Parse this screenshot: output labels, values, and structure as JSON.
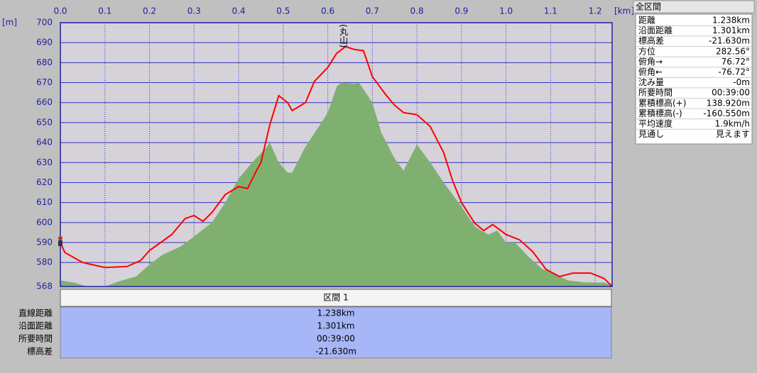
{
  "chart_data": {
    "type": "line",
    "xlabel": "[km]",
    "ylabel": "[m]",
    "xlim": [
      0,
      1.238
    ],
    "ylim": [
      568,
      700
    ],
    "xticks": [
      {
        "value": 0,
        "label": "0.0"
      },
      {
        "value": 0.1,
        "label": "0.1"
      },
      {
        "value": 0.2,
        "label": "0.2"
      },
      {
        "value": 0.3,
        "label": "0.3"
      },
      {
        "value": 0.4,
        "label": "0.4"
      },
      {
        "value": 0.5,
        "label": "0.5"
      },
      {
        "value": 0.6,
        "label": "0.6"
      },
      {
        "value": 0.7,
        "label": "0.7"
      },
      {
        "value": 0.8,
        "label": "0.8"
      },
      {
        "value": 0.9,
        "label": "0.9"
      },
      {
        "value": 1.0,
        "label": "1.0"
      },
      {
        "value": 1.1,
        "label": "1.1"
      },
      {
        "value": 1.2,
        "label": "1.2"
      }
    ],
    "yticks": [
      568,
      580,
      590,
      600,
      610,
      620,
      630,
      640,
      650,
      660,
      670,
      680,
      690,
      700
    ],
    "grid": true,
    "annotation": {
      "text": "(丸山)",
      "x": 0.64
    },
    "series": [
      {
        "color": "#80b070",
        "fill": true,
        "x": [
          0,
          0.03,
          0.06,
          0.1,
          0.13,
          0.17,
          0.2,
          0.23,
          0.27,
          0.3,
          0.34,
          0.37,
          0.4,
          0.43,
          0.46,
          0.47,
          0.49,
          0.51,
          0.52,
          0.55,
          0.58,
          0.6,
          0.62,
          0.63,
          0.66,
          0.67,
          0.7,
          0.72,
          0.75,
          0.77,
          0.8,
          0.83,
          0.86,
          0.9,
          0.93,
          0.96,
          0.98,
          1.0,
          1.02,
          1.05,
          1.08,
          1.11,
          1.14,
          1.18,
          1.22,
          1.238
        ],
        "values": [
          571,
          570,
          568,
          568,
          570.5,
          573,
          579,
          584,
          588,
          593,
          600,
          610,
          622,
          630,
          637,
          640,
          630,
          625,
          625,
          638,
          648,
          655,
          668,
          670,
          669.5,
          670,
          660,
          645,
          632,
          626,
          639,
          630,
          620,
          608,
          598,
          594,
          596,
          590,
          590,
          583,
          577,
          574,
          571,
          570,
          570,
          568.5
        ]
      },
      {
        "color": "#ff0000",
        "fill": false,
        "x": [
          0,
          0.01,
          0.05,
          0.1,
          0.15,
          0.18,
          0.2,
          0.25,
          0.28,
          0.3,
          0.32,
          0.34,
          0.37,
          0.4,
          0.42,
          0.44,
          0.45,
          0.47,
          0.49,
          0.51,
          0.52,
          0.55,
          0.57,
          0.6,
          0.62,
          0.64,
          0.66,
          0.68,
          0.7,
          0.73,
          0.75,
          0.77,
          0.8,
          0.83,
          0.86,
          0.88,
          0.9,
          0.93,
          0.95,
          0.97,
          1.0,
          1.03,
          1.06,
          1.09,
          1.12,
          1.15,
          1.19,
          1.22,
          1.238
        ],
        "values": [
          590,
          585,
          580,
          577.5,
          578,
          581,
          586,
          594,
          602,
          603.5,
          600.6,
          605,
          614,
          618,
          617,
          626,
          630,
          649,
          663.5,
          660,
          656,
          660,
          670.6,
          677.6,
          684.7,
          688,
          686.6,
          686,
          673,
          664,
          658.7,
          655,
          654,
          648,
          635,
          621,
          610,
          599.6,
          596,
          599,
          594,
          591.4,
          585.4,
          576.5,
          573,
          574.7,
          574.7,
          572,
          568
        ]
      }
    ]
  },
  "summary_panel": {
    "title": "全区間",
    "rows": [
      [
        "距離",
        "1.238km"
      ],
      [
        "沿面距離",
        "1.301km"
      ],
      [
        "標高差",
        "-21.630m"
      ],
      [
        "方位",
        "282.56°"
      ],
      [
        "俯角→",
        "76.72°"
      ],
      [
        "俯角←",
        "-76.72°"
      ],
      [
        "沈み量",
        "-0m"
      ],
      [
        "所要時間",
        "00:39:00"
      ],
      [
        "累積標高(+)",
        "138.920m"
      ],
      [
        "累積標高(-)",
        "-160.550m"
      ],
      [
        "平均速度",
        "1.9km/h"
      ],
      [
        "見通し",
        "見えます"
      ]
    ]
  },
  "section_table": {
    "header": "区間 1",
    "rows": [
      [
        "直線距離",
        "1.238km"
      ],
      [
        "沿面距離",
        "1.301km"
      ],
      [
        "所要時間",
        "00:39:00"
      ],
      [
        "標高差",
        "-21.630m"
      ]
    ]
  }
}
